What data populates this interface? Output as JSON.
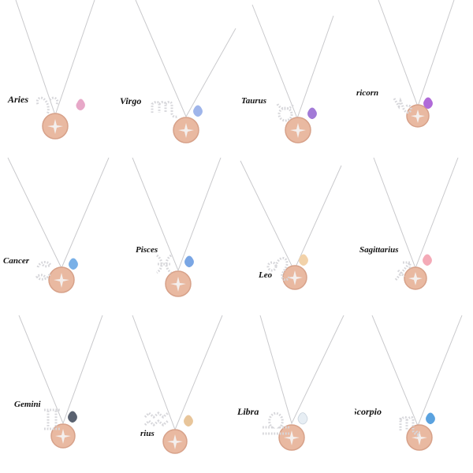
{
  "colors": {
    "chain": "#c9c9cc",
    "disc": "#e9b9a1",
    "disc_edge": "#d7a189",
    "sparkle": "#f5f5f5",
    "symbol": "#d7d7db"
  },
  "items": [
    {
      "label": "Aries",
      "symbol_icon": "aries-symbol-icon",
      "stone_color": "#e7a8c8"
    },
    {
      "label": "Virgo",
      "symbol_icon": "virgo-symbol-icon",
      "stone_color": "#9fb5ea"
    },
    {
      "label": "Taurus",
      "symbol_icon": "taurus-symbol-icon",
      "stone_color": "#a27ad7"
    },
    {
      "label": "ricorn",
      "symbol_icon": "capricorn-symbol-icon",
      "stone_color": "#b06ad8"
    },
    {
      "label": "Cancer",
      "symbol_icon": "cancer-symbol-icon",
      "stone_color": "#79b0e7"
    },
    {
      "label": "Pisces",
      "symbol_icon": "pisces-symbol-icon",
      "stone_color": "#7aa6e4"
    },
    {
      "label": "Leo",
      "symbol_icon": "leo-symbol-icon",
      "stone_color": "#f2d2a9"
    },
    {
      "label": "Sagittarius",
      "symbol_icon": "sagittarius-symbol-icon",
      "stone_color": "#f4aab7"
    },
    {
      "label": "Gemini",
      "symbol_icon": "gemini-symbol-icon",
      "stone_color": "#5a6270"
    },
    {
      "label": "rius",
      "symbol_icon": "aquarius-symbol-icon",
      "stone_color": "#e8c59a"
    },
    {
      "label": "Libra",
      "symbol_icon": "libra-symbol-icon",
      "stone_color": "#e7eef4"
    },
    {
      "label": "Scorpio",
      "symbol_icon": "scorpio-symbol-icon",
      "stone_color": "#5aa2df"
    }
  ]
}
